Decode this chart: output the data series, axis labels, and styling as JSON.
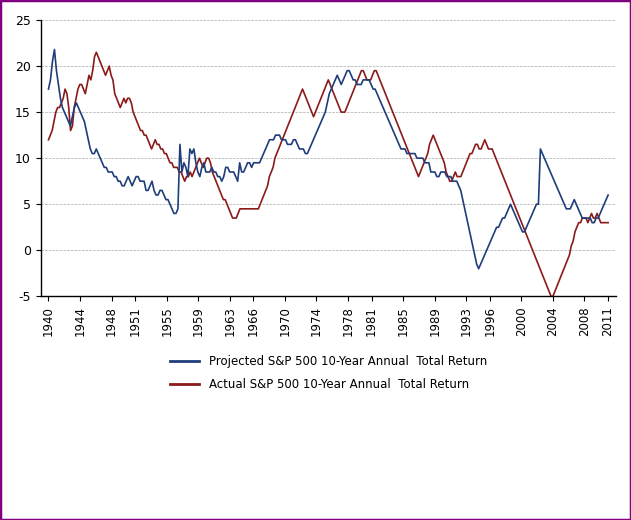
{
  "title": "",
  "xlabel": "",
  "ylabel": "",
  "ylim": [
    -5,
    25
  ],
  "yticks": [
    -5,
    0,
    5,
    10,
    15,
    20,
    25
  ],
  "xtick_labels": [
    "1940",
    "1944",
    "1948",
    "1951",
    "1955",
    "1959",
    "1963",
    "1966",
    "1970",
    "1974",
    "1978",
    "1981",
    "1985",
    "1989",
    "1993",
    "1996",
    "2000",
    "2004",
    "2008",
    "2011"
  ],
  "legend1": "Projected S&P 500 10-Year Annual  Total Return",
  "legend2": "Actual S&P 500 10-Year Annual  Total Return",
  "color_projected": "#1F3D7A",
  "color_actual": "#8B1A1A",
  "background_color": "#FFFFFF",
  "border_color": "#800080",
  "projected": [
    17.5,
    18.5,
    20.5,
    21.8,
    19.5,
    18.0,
    16.5,
    15.5,
    15.0,
    14.5,
    14.0,
    13.5,
    14.5,
    15.5,
    16.0,
    15.5,
    15.0,
    14.5,
    14.0,
    13.0,
    12.0,
    11.0,
    10.5,
    10.5,
    11.0,
    10.5,
    10.0,
    9.5,
    9.0,
    9.0,
    8.5,
    8.5,
    8.5,
    8.0,
    8.0,
    7.5,
    7.5,
    7.0,
    7.0,
    7.5,
    8.0,
    7.5,
    7.0,
    7.5,
    8.0,
    8.0,
    7.5,
    7.5,
    7.5,
    6.5,
    6.5,
    7.0,
    7.5,
    6.5,
    6.0,
    6.0,
    6.5,
    6.5,
    6.0,
    5.5,
    5.5,
    5.0,
    4.5,
    4.0,
    4.0,
    4.5,
    11.5,
    8.5,
    9.5,
    9.0,
    8.0,
    11.0,
    10.5,
    11.0,
    9.5,
    8.5,
    8.0,
    9.0,
    9.5,
    8.5,
    8.5,
    8.5,
    9.0,
    8.5,
    8.5,
    8.0,
    8.0,
    7.5,
    8.0,
    9.0,
    9.0,
    8.5,
    8.5,
    8.5,
    8.0,
    7.5,
    9.5,
    8.5,
    8.5,
    9.0,
    9.5,
    9.5,
    9.0,
    9.5,
    9.5,
    9.5,
    9.5,
    10.0,
    10.5,
    11.0,
    11.5,
    12.0,
    12.0,
    12.0,
    12.5,
    12.5,
    12.5,
    12.0,
    12.0,
    12.0,
    11.5,
    11.5,
    11.5,
    12.0,
    12.0,
    11.5,
    11.0,
    11.0,
    11.0,
    10.5,
    10.5,
    11.0,
    11.5,
    12.0,
    12.5,
    13.0,
    13.5,
    14.0,
    14.5,
    15.0,
    16.0,
    17.0,
    17.5,
    18.0,
    18.5,
    19.0,
    18.5,
    18.0,
    18.5,
    19.0,
    19.5,
    19.5,
    19.0,
    18.5,
    18.5,
    18.0,
    18.0,
    18.0,
    18.5,
    18.5,
    18.5,
    18.5,
    18.0,
    17.5,
    17.5,
    17.0,
    16.5,
    16.0,
    15.5,
    15.0,
    14.5,
    14.0,
    13.5,
    13.0,
    12.5,
    12.0,
    11.5,
    11.0,
    11.0,
    11.0,
    10.5,
    10.5,
    10.5,
    10.5,
    10.5,
    10.0,
    10.0,
    10.0,
    10.0,
    9.5,
    9.5,
    9.5,
    8.5,
    8.5,
    8.5,
    8.0,
    8.0,
    8.5,
    8.5,
    8.5,
    8.0,
    8.0,
    8.0,
    7.5,
    7.5,
    7.5,
    7.0,
    6.5,
    5.5,
    4.5,
    3.5,
    2.5,
    1.5,
    0.5,
    -0.5,
    -1.5,
    -2.0,
    -1.5,
    -1.0,
    -0.5,
    0.0,
    0.5,
    1.0,
    1.5,
    2.0,
    2.5,
    2.5,
    3.0,
    3.5,
    3.5,
    4.0,
    4.5,
    5.0,
    4.5,
    4.0,
    3.5,
    3.0,
    2.5,
    2.0,
    2.0,
    2.5,
    3.0,
    3.5,
    4.0,
    4.5,
    5.0,
    5.0,
    11.0,
    10.5,
    10.0,
    9.5,
    9.0,
    8.5,
    8.0,
    7.5,
    7.0,
    6.5,
    6.0,
    5.5,
    5.0,
    4.5,
    4.5,
    4.5,
    5.0,
    5.5,
    5.0,
    4.5,
    4.0,
    3.5,
    3.5,
    3.5,
    3.5,
    3.5,
    3.0,
    3.0,
    3.5,
    3.5,
    4.0,
    4.5,
    5.0,
    5.5,
    6.0
  ],
  "actual": [
    12.0,
    12.5,
    13.0,
    14.0,
    15.0,
    15.5,
    15.5,
    16.0,
    16.5,
    17.5,
    17.0,
    15.5,
    13.0,
    13.5,
    15.5,
    16.5,
    17.5,
    18.0,
    18.0,
    17.5,
    17.0,
    18.0,
    19.0,
    18.5,
    19.5,
    21.0,
    21.5,
    21.0,
    20.5,
    20.0,
    19.5,
    19.0,
    19.5,
    20.0,
    19.0,
    18.5,
    17.0,
    16.5,
    16.0,
    15.5,
    16.0,
    16.5,
    16.0,
    16.5,
    16.5,
    16.0,
    15.0,
    14.5,
    14.0,
    13.5,
    13.0,
    13.0,
    12.5,
    12.5,
    12.0,
    11.5,
    11.0,
    11.5,
    12.0,
    11.5,
    11.5,
    11.0,
    11.0,
    10.5,
    10.5,
    10.0,
    9.5,
    9.5,
    9.0,
    9.0,
    9.0,
    8.5,
    8.5,
    8.0,
    7.5,
    8.0,
    8.0,
    8.5,
    8.0,
    8.5,
    9.0,
    9.5,
    10.0,
    9.5,
    9.0,
    9.5,
    10.0,
    10.0,
    9.5,
    8.5,
    8.0,
    7.5,
    7.0,
    6.5,
    6.0,
    5.5,
    5.5,
    5.0,
    4.5,
    4.0,
    3.5,
    3.5,
    3.5,
    4.0,
    4.5,
    4.5,
    4.5,
    4.5,
    4.5,
    4.5,
    4.5,
    4.5,
    4.5,
    4.5,
    4.5,
    5.0,
    5.5,
    6.0,
    6.5,
    7.0,
    8.0,
    8.5,
    9.0,
    10.0,
    10.5,
    11.0,
    11.5,
    12.0,
    12.5,
    13.0,
    13.5,
    14.0,
    14.5,
    15.0,
    15.5,
    16.0,
    16.5,
    17.0,
    17.5,
    17.0,
    16.5,
    16.0,
    15.5,
    15.0,
    14.5,
    15.0,
    15.5,
    16.0,
    16.5,
    17.0,
    17.5,
    18.0,
    18.5,
    18.0,
    17.5,
    17.0,
    16.5,
    16.0,
    15.5,
    15.0,
    15.0,
    15.0,
    15.5,
    16.0,
    16.5,
    17.0,
    17.5,
    18.0,
    18.5,
    19.0,
    19.5,
    19.5,
    19.0,
    18.5,
    18.5,
    18.5,
    19.0,
    19.5,
    19.5,
    19.0,
    18.5,
    18.0,
    17.5,
    17.0,
    16.5,
    16.0,
    15.5,
    15.0,
    14.5,
    14.0,
    13.5,
    13.0,
    12.5,
    12.0,
    11.5,
    11.0,
    10.5,
    10.0,
    9.5,
    9.0,
    8.5,
    8.0,
    8.5,
    9.0,
    9.5,
    10.0,
    10.5,
    11.5,
    12.0,
    12.5,
    12.0,
    11.5,
    11.0,
    10.5,
    10.0,
    9.5,
    8.5,
    8.0,
    7.5,
    7.5,
    8.0,
    8.5,
    8.0,
    8.0,
    8.0,
    8.5,
    9.0,
    9.5,
    10.0,
    10.5,
    10.5,
    11.0,
    11.5,
    11.5,
    11.0,
    11.0,
    11.5,
    12.0,
    11.5,
    11.0,
    11.0,
    11.0,
    10.5,
    10.0,
    9.5,
    9.0,
    8.5,
    8.0,
    7.5,
    7.0,
    6.5,
    6.0,
    5.5,
    5.0,
    4.5,
    4.0,
    3.5,
    3.0,
    2.5,
    2.0,
    1.5,
    1.0,
    0.5,
    0.0,
    -0.5,
    -1.0,
    -1.5,
    -2.0,
    -2.5,
    -3.0,
    -3.5,
    -4.0,
    -4.5,
    -5.0,
    -5.0,
    -4.5,
    -4.0,
    -3.5,
    -3.0,
    -2.5,
    -2.0,
    -1.5,
    -1.0,
    -0.5,
    0.5,
    1.0,
    2.0,
    2.5,
    3.0,
    3.0,
    3.5,
    3.5,
    3.5,
    3.0,
    3.5,
    4.0,
    3.5,
    3.5,
    4.0,
    3.5,
    3.0,
    3.0,
    3.0,
    3.0,
    3.0
  ]
}
